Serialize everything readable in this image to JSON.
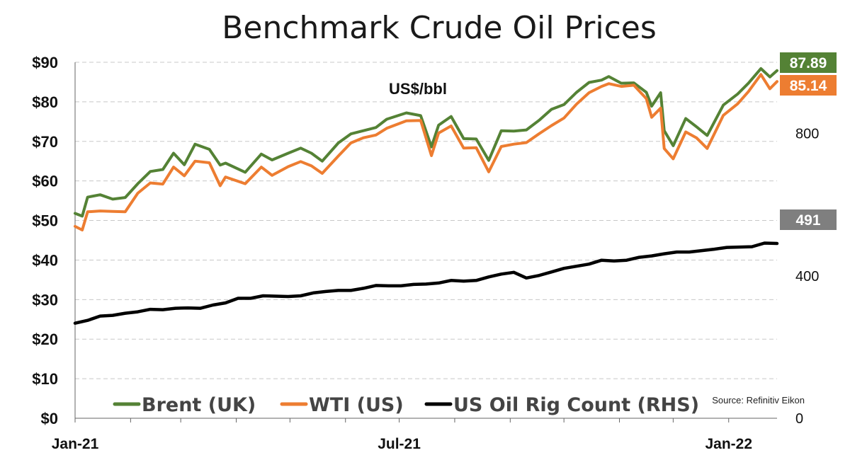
{
  "chart_data": {
    "type": "line",
    "title": "Benchmark Crude Oil Prices",
    "unit_label": "US$/bbl",
    "source": "Source: Refinitiv Eikon",
    "left_axis": {
      "ylim": [
        0,
        90
      ],
      "ticks": [
        0,
        10,
        20,
        30,
        40,
        50,
        60,
        70,
        80,
        90
      ],
      "tick_labels": [
        "$0",
        "$10",
        "$20",
        "$30",
        "$40",
        "$50",
        "$60",
        "$70",
        "$80",
        "$90"
      ]
    },
    "right_axis": {
      "ylim": [
        0,
        1000
      ],
      "ticks": [
        0,
        400,
        800
      ],
      "tick_labels": [
        "0",
        "400",
        "800"
      ]
    },
    "x_axis": {
      "range": [
        "2021-01-01",
        "2022-01-28"
      ],
      "labeled_ticks": [
        {
          "date": "2021-01-01",
          "label": "Jan-21"
        },
        {
          "date": "2021-07-01",
          "label": "Jul-21"
        },
        {
          "date": "2022-01-01",
          "label": "Jan-22"
        }
      ]
    },
    "grid": "horizontal dashed",
    "legend_position": "bottom",
    "series": [
      {
        "name": "Brent (UK)",
        "axis": "left",
        "color": "#548235",
        "end_label": "87.89",
        "points": [
          [
            "2021-01-01",
            51.8
          ],
          [
            "2021-01-05",
            51.1
          ],
          [
            "2021-01-08",
            55.9
          ],
          [
            "2021-01-15",
            56.5
          ],
          [
            "2021-01-22",
            55.4
          ],
          [
            "2021-01-29",
            55.8
          ],
          [
            "2021-02-05",
            59.3
          ],
          [
            "2021-02-12",
            62.4
          ],
          [
            "2021-02-19",
            62.9
          ],
          [
            "2021-02-25",
            67.0
          ],
          [
            "2021-03-03",
            64.1
          ],
          [
            "2021-03-09",
            69.3
          ],
          [
            "2021-03-17",
            68.0
          ],
          [
            "2021-03-23",
            64.0
          ],
          [
            "2021-03-26",
            64.5
          ],
          [
            "2021-04-06",
            62.2
          ],
          [
            "2021-04-15",
            66.8
          ],
          [
            "2021-04-21",
            65.3
          ],
          [
            "2021-04-30",
            67.0
          ],
          [
            "2021-05-07",
            68.3
          ],
          [
            "2021-05-13",
            67.0
          ],
          [
            "2021-05-19",
            65.0
          ],
          [
            "2021-05-28",
            69.6
          ],
          [
            "2021-06-04",
            71.9
          ],
          [
            "2021-06-11",
            72.7
          ],
          [
            "2021-06-18",
            73.5
          ],
          [
            "2021-06-24",
            75.6
          ],
          [
            "2021-07-05",
            77.2
          ],
          [
            "2021-07-13",
            76.5
          ],
          [
            "2021-07-19",
            68.6
          ],
          [
            "2021-07-23",
            74.1
          ],
          [
            "2021-07-30",
            76.3
          ],
          [
            "2021-08-06",
            70.7
          ],
          [
            "2021-08-13",
            70.6
          ],
          [
            "2021-08-20",
            65.2
          ],
          [
            "2021-08-27",
            72.7
          ],
          [
            "2021-09-03",
            72.6
          ],
          [
            "2021-09-10",
            72.9
          ],
          [
            "2021-09-17",
            75.3
          ],
          [
            "2021-09-24",
            78.1
          ],
          [
            "2021-10-01",
            79.3
          ],
          [
            "2021-10-08",
            82.4
          ],
          [
            "2021-10-15",
            84.9
          ],
          [
            "2021-10-22",
            85.5
          ],
          [
            "2021-10-26",
            86.4
          ],
          [
            "2021-11-02",
            84.7
          ],
          [
            "2021-11-09",
            84.8
          ],
          [
            "2021-11-16",
            82.4
          ],
          [
            "2021-11-19",
            78.9
          ],
          [
            "2021-11-24",
            82.3
          ],
          [
            "2021-11-26",
            72.7
          ],
          [
            "2021-12-01",
            68.9
          ],
          [
            "2021-12-08",
            75.8
          ],
          [
            "2021-12-14",
            73.7
          ],
          [
            "2021-12-20",
            71.5
          ],
          [
            "2021-12-29",
            79.2
          ],
          [
            "2022-01-06",
            81.99
          ],
          [
            "2022-01-12",
            84.7
          ],
          [
            "2022-01-19",
            88.4
          ],
          [
            "2022-01-24",
            86.3
          ],
          [
            "2022-01-28",
            87.89
          ]
        ]
      },
      {
        "name": "WTI (US)",
        "axis": "left",
        "color": "#ED7D31",
        "end_label": "85.14",
        "points": [
          [
            "2021-01-01",
            48.5
          ],
          [
            "2021-01-05",
            47.6
          ],
          [
            "2021-01-08",
            52.2
          ],
          [
            "2021-01-15",
            52.4
          ],
          [
            "2021-01-22",
            52.3
          ],
          [
            "2021-01-29",
            52.2
          ],
          [
            "2021-02-05",
            56.9
          ],
          [
            "2021-02-12",
            59.5
          ],
          [
            "2021-02-19",
            59.2
          ],
          [
            "2021-02-25",
            63.5
          ],
          [
            "2021-03-03",
            61.3
          ],
          [
            "2021-03-09",
            65.0
          ],
          [
            "2021-03-17",
            64.6
          ],
          [
            "2021-03-23",
            58.8
          ],
          [
            "2021-03-26",
            61.0
          ],
          [
            "2021-04-06",
            59.3
          ],
          [
            "2021-04-15",
            63.5
          ],
          [
            "2021-04-21",
            61.4
          ],
          [
            "2021-04-30",
            63.6
          ],
          [
            "2021-05-07",
            64.9
          ],
          [
            "2021-05-13",
            63.8
          ],
          [
            "2021-05-19",
            61.9
          ],
          [
            "2021-05-28",
            66.3
          ],
          [
            "2021-06-04",
            69.6
          ],
          [
            "2021-06-11",
            70.9
          ],
          [
            "2021-06-18",
            71.6
          ],
          [
            "2021-06-24",
            73.3
          ],
          [
            "2021-07-05",
            75.2
          ],
          [
            "2021-07-13",
            75.3
          ],
          [
            "2021-07-19",
            66.4
          ],
          [
            "2021-07-23",
            72.1
          ],
          [
            "2021-07-30",
            73.9
          ],
          [
            "2021-08-06",
            68.3
          ],
          [
            "2021-08-13",
            68.4
          ],
          [
            "2021-08-20",
            62.3
          ],
          [
            "2021-08-27",
            68.7
          ],
          [
            "2021-09-03",
            69.3
          ],
          [
            "2021-09-10",
            69.7
          ],
          [
            "2021-09-17",
            71.9
          ],
          [
            "2021-09-24",
            73.98
          ],
          [
            "2021-10-01",
            75.9
          ],
          [
            "2021-10-08",
            79.4
          ],
          [
            "2021-10-15",
            82.3
          ],
          [
            "2021-10-22",
            83.9
          ],
          [
            "2021-10-26",
            84.6
          ],
          [
            "2021-11-02",
            83.9
          ],
          [
            "2021-11-09",
            84.2
          ],
          [
            "2021-11-16",
            80.8
          ],
          [
            "2021-11-19",
            76.1
          ],
          [
            "2021-11-24",
            78.4
          ],
          [
            "2021-11-26",
            68.2
          ],
          [
            "2021-12-01",
            65.6
          ],
          [
            "2021-12-08",
            72.4
          ],
          [
            "2021-12-14",
            70.9
          ],
          [
            "2021-12-20",
            68.2
          ],
          [
            "2021-12-29",
            76.6
          ],
          [
            "2022-01-06",
            79.5
          ],
          [
            "2022-01-12",
            82.6
          ],
          [
            "2022-01-19",
            86.9
          ],
          [
            "2022-01-24",
            83.3
          ],
          [
            "2022-01-28",
            85.14
          ]
        ]
      },
      {
        "name": "US Oil Rig Count (RHS)",
        "axis": "right",
        "color": "#000000",
        "end_label": "491",
        "points": [
          [
            "2021-01-01",
            267
          ],
          [
            "2021-01-08",
            275
          ],
          [
            "2021-01-15",
            287
          ],
          [
            "2021-01-22",
            289
          ],
          [
            "2021-01-29",
            295
          ],
          [
            "2021-02-05",
            299
          ],
          [
            "2021-02-12",
            306
          ],
          [
            "2021-02-19",
            305
          ],
          [
            "2021-02-26",
            309
          ],
          [
            "2021-03-05",
            310
          ],
          [
            "2021-03-12",
            309
          ],
          [
            "2021-03-19",
            318
          ],
          [
            "2021-03-26",
            324
          ],
          [
            "2021-04-02",
            337
          ],
          [
            "2021-04-09",
            337
          ],
          [
            "2021-04-16",
            344
          ],
          [
            "2021-04-23",
            343
          ],
          [
            "2021-04-30",
            342
          ],
          [
            "2021-05-07",
            344
          ],
          [
            "2021-05-14",
            352
          ],
          [
            "2021-05-21",
            356
          ],
          [
            "2021-05-28",
            359
          ],
          [
            "2021-06-04",
            359
          ],
          [
            "2021-06-11",
            365
          ],
          [
            "2021-06-18",
            373
          ],
          [
            "2021-06-25",
            372
          ],
          [
            "2021-07-02",
            372
          ],
          [
            "2021-07-09",
            376
          ],
          [
            "2021-07-16",
            377
          ],
          [
            "2021-07-23",
            380
          ],
          [
            "2021-07-30",
            387
          ],
          [
            "2021-08-06",
            385
          ],
          [
            "2021-08-13",
            387
          ],
          [
            "2021-08-20",
            397
          ],
          [
            "2021-08-27",
            405
          ],
          [
            "2021-09-03",
            410
          ],
          [
            "2021-09-10",
            394
          ],
          [
            "2021-09-17",
            401
          ],
          [
            "2021-09-24",
            411
          ],
          [
            "2021-10-01",
            421
          ],
          [
            "2021-10-08",
            427
          ],
          [
            "2021-10-15",
            433
          ],
          [
            "2021-10-22",
            444
          ],
          [
            "2021-10-29",
            442
          ],
          [
            "2021-11-05",
            444
          ],
          [
            "2021-11-12",
            452
          ],
          [
            "2021-11-19",
            456
          ],
          [
            "2021-11-26",
            462
          ],
          [
            "2021-12-03",
            467
          ],
          [
            "2021-12-10",
            467
          ],
          [
            "2021-12-17",
            471
          ],
          [
            "2021-12-24",
            475
          ],
          [
            "2021-12-31",
            480
          ],
          [
            "2022-01-07",
            481
          ],
          [
            "2022-01-14",
            482
          ],
          [
            "2022-01-21",
            492
          ],
          [
            "2022-01-28",
            491
          ]
        ]
      }
    ]
  }
}
